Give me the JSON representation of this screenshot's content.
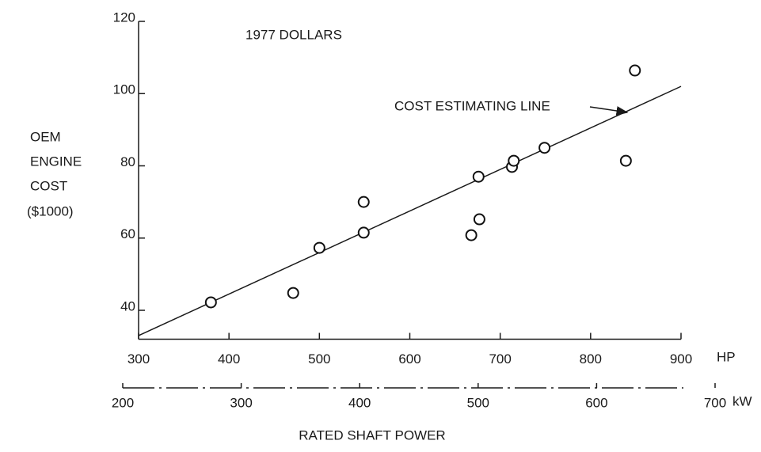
{
  "chart_data": {
    "type": "scatter",
    "title": "1977 DOLLARS",
    "y_label": [
      "OEM",
      "ENGINE",
      "COST",
      "($1000)"
    ],
    "x_label": "RATED SHAFT POWER",
    "x_unit": "HP",
    "x2_unit": "kW",
    "annotation": "COST ESTIMATING LINE",
    "x": [
      380,
      471,
      500,
      549,
      549,
      668,
      676,
      677,
      713,
      715,
      749,
      839,
      849
    ],
    "values": [
      42.2,
      44.8,
      57.3,
      70.0,
      61.5,
      60.8,
      77.0,
      65.2,
      79.7,
      81.4,
      85.0,
      81.4,
      106.4
    ],
    "fit_line": {
      "x": [
        300,
        900
      ],
      "values": [
        33,
        102
      ]
    },
    "xlim": [
      300,
      900
    ],
    "xticks": [
      300,
      400,
      500,
      600,
      700,
      800,
      900
    ],
    "x2lim": [
      200,
      700
    ],
    "x2ticks": [
      200,
      300,
      400,
      500,
      600,
      700
    ],
    "ylim": [
      32,
      120
    ],
    "yticks": [
      40,
      60,
      80,
      100,
      120
    ],
    "color": "#111111"
  }
}
